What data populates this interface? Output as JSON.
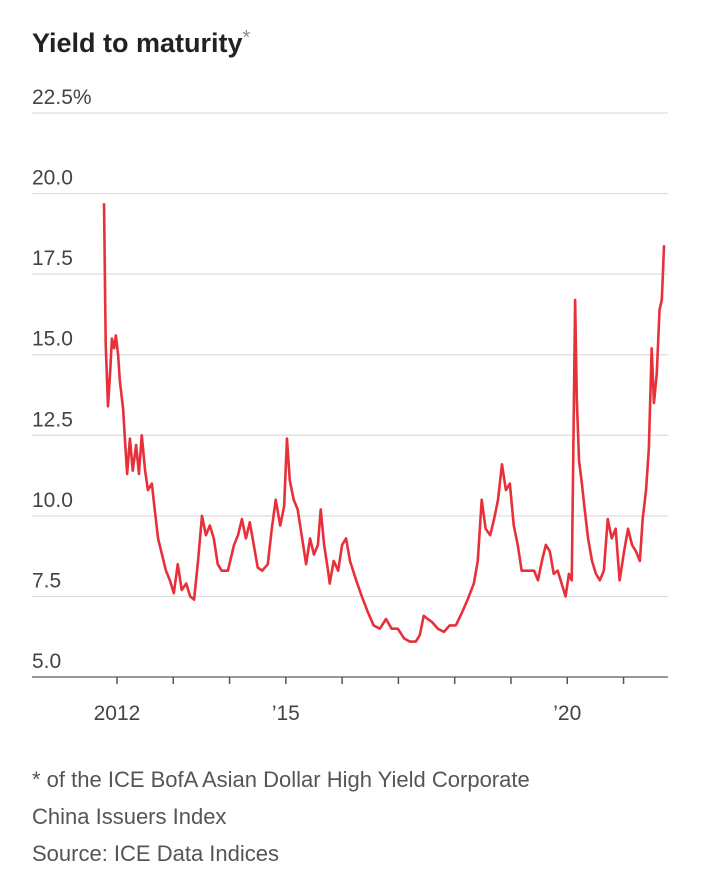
{
  "chart_data": {
    "type": "line",
    "title": "Yield to maturity",
    "title_marker": "*",
    "note_lines": [
      "* of the ICE BofA Asian Dollar High Yield Corporate",
      "China Issuers Index"
    ],
    "source": "Source: ICE Data Indices",
    "color": "#e8303a",
    "grid": true,
    "xlim": [
      2010.49,
      2021.79
    ],
    "ylim": [
      5,
      22.5
    ],
    "yticks": [
      {
        "value": 5,
        "label": "5.0"
      },
      7.5,
      {
        "value": 10,
        "label": "10.0"
      },
      12.5,
      {
        "value": 15,
        "label": "15.0"
      },
      17.5,
      {
        "value": 20,
        "label": "20.0"
      },
      {
        "value": 22.5,
        "label": "22.5%"
      }
    ],
    "xticks": [
      2012,
      {
        "value": 2015,
        "label": "’15"
      },
      {
        "value": 2020,
        "label": "’20"
      }
    ],
    "xminor_ticks": [
      2013,
      2014,
      2016,
      2017,
      2018,
      2019,
      2021
    ],
    "x": [
      2011.77,
      2011.79,
      2011.8,
      2011.84,
      2011.88,
      2011.91,
      2011.95,
      2011.98,
      2012.02,
      2012.05,
      2012.11,
      2012.14,
      2012.18,
      2012.23,
      2012.28,
      2012.34,
      2012.39,
      2012.44,
      2012.5,
      2012.55,
      2012.62,
      2012.67,
      2012.73,
      2012.8,
      2012.87,
      2012.94,
      2013.01,
      2013.08,
      2013.15,
      2013.23,
      2013.3,
      2013.37,
      2013.44,
      2013.51,
      2013.58,
      2013.65,
      2013.72,
      2013.79,
      2013.86,
      2013.97,
      2014.08,
      2014.15,
      2014.22,
      2014.29,
      2014.36,
      2014.43,
      2014.5,
      2014.58,
      2014.68,
      2014.75,
      2014.82,
      2014.9,
      2014.97,
      2015.02,
      2015.07,
      2015.14,
      2015.21,
      2015.29,
      2015.36,
      2015.43,
      2015.5,
      2015.57,
      2015.62,
      2015.68,
      2015.75,
      2015.78,
      2015.85,
      2015.93,
      2016.0,
      2016.07,
      2016.14,
      2016.25,
      2016.35,
      2016.46,
      2016.56,
      2016.67,
      2016.78,
      2016.88,
      2016.99,
      2017.1,
      2017.2,
      2017.31,
      2017.38,
      2017.45,
      2017.52,
      2017.6,
      2017.7,
      2017.81,
      2017.91,
      2018.02,
      2018.13,
      2018.23,
      2018.34,
      2018.41,
      2018.48,
      2018.55,
      2018.63,
      2018.7,
      2018.77,
      2018.84,
      2018.91,
      2018.98,
      2019.05,
      2019.12,
      2019.19,
      2019.3,
      2019.41,
      2019.48,
      2019.55,
      2019.62,
      2019.69,
      2019.76,
      2019.83,
      2019.9,
      2019.97,
      2020.03,
      2020.08,
      2020.14,
      2020.17,
      2020.21,
      2020.26,
      2020.31,
      2020.37,
      2020.44,
      2020.51,
      2020.58,
      2020.65,
      2020.72,
      2020.79,
      2020.86,
      2020.93,
      2021.01,
      2021.08,
      2021.15,
      2021.22,
      2021.29,
      2021.34,
      2021.4,
      2021.45,
      2021.5,
      2021.54,
      2021.59,
      2021.64,
      2021.68,
      2021.72
    ],
    "values": [
      19.7,
      16.7,
      15.3,
      13.4,
      14.5,
      15.5,
      15.2,
      15.6,
      15.0,
      14.2,
      13.3,
      12.4,
      11.3,
      12.4,
      11.4,
      12.2,
      11.3,
      12.5,
      11.4,
      10.8,
      11.0,
      10.2,
      9.3,
      8.8,
      8.3,
      8.0,
      7.6,
      8.5,
      7.7,
      7.9,
      7.5,
      7.4,
      8.6,
      10.0,
      9.4,
      9.7,
      9.3,
      8.5,
      8.3,
      8.3,
      9.1,
      9.4,
      9.9,
      9.3,
      9.8,
      9.1,
      8.4,
      8.3,
      8.5,
      9.6,
      10.5,
      9.7,
      10.3,
      12.4,
      11.1,
      10.5,
      10.2,
      9.3,
      8.5,
      9.3,
      8.8,
      9.1,
      10.2,
      9.1,
      8.3,
      7.9,
      8.6,
      8.3,
      9.1,
      9.3,
      8.6,
      8.0,
      7.5,
      7.0,
      6.6,
      6.5,
      6.8,
      6.5,
      6.5,
      6.2,
      6.1,
      6.1,
      6.3,
      6.9,
      6.8,
      6.7,
      6.5,
      6.4,
      6.6,
      6.6,
      7.0,
      7.4,
      7.9,
      8.6,
      10.5,
      9.6,
      9.4,
      9.9,
      10.5,
      11.6,
      10.8,
      11.0,
      9.7,
      9.1,
      8.3,
      8.3,
      8.3,
      8.0,
      8.6,
      9.1,
      8.9,
      8.2,
      8.3,
      7.9,
      7.5,
      8.2,
      8.0,
      16.7,
      13.6,
      11.7,
      11.0,
      10.2,
      9.3,
      8.6,
      8.2,
      8.0,
      8.3,
      9.9,
      9.3,
      9.6,
      8.0,
      8.9,
      9.6,
      9.1,
      8.9,
      8.6,
      9.9,
      10.8,
      12.1,
      15.2,
      13.5,
      14.4,
      16.4,
      16.7,
      18.4
    ]
  }
}
